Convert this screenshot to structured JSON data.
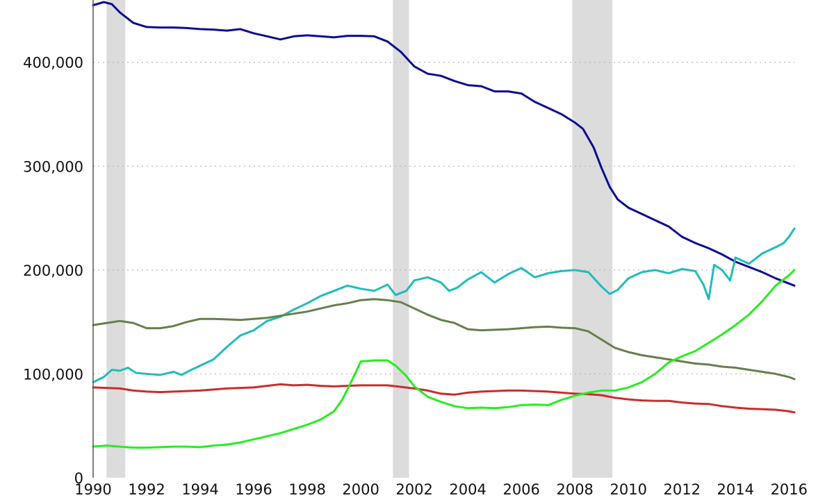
{
  "chart_data": {
    "type": "line",
    "title": "",
    "xlabel": "",
    "ylabel": "",
    "xlim": [
      1990,
      2016.2
    ],
    "ylim": [
      0,
      460000
    ],
    "grid": {
      "x": false,
      "y": true
    },
    "legend": "none",
    "x_ticks": [
      1990,
      1992,
      1994,
      1996,
      1998,
      2000,
      2002,
      2004,
      2006,
      2008,
      2010,
      2012,
      2014,
      2016
    ],
    "x_tick_labels": [
      "1990",
      "1992",
      "1994",
      "1996",
      "1998",
      "2000",
      "2002",
      "2004",
      "2006",
      "2008",
      "2010",
      "2012",
      "2014",
      "2016"
    ],
    "y_ticks": [
      0,
      100000,
      200000,
      300000,
      400000
    ],
    "y_tick_labels": [
      "0",
      "100,000",
      "200,000",
      "300,000",
      "400,000"
    ],
    "recessions": [
      {
        "start": 1990.5,
        "end": 1991.2
      },
      {
        "start": 2001.2,
        "end": 2001.8
      },
      {
        "start": 2007.9,
        "end": 2009.4
      }
    ],
    "series": [
      {
        "color": "#0b0b96",
        "points": [
          [
            1990,
            455000
          ],
          [
            1990.4,
            458000
          ],
          [
            1990.7,
            456000
          ],
          [
            1991,
            448000
          ],
          [
            1991.5,
            438000
          ],
          [
            1992,
            434000
          ],
          [
            1992.5,
            433500
          ],
          [
            1993,
            433500
          ],
          [
            1993.5,
            433000
          ],
          [
            1994,
            432000
          ],
          [
            1994.5,
            431500
          ],
          [
            1995,
            430500
          ],
          [
            1995.5,
            432000
          ],
          [
            1996,
            428000
          ],
          [
            1996.5,
            425000
          ],
          [
            1997,
            422000
          ],
          [
            1997.5,
            425000
          ],
          [
            1998,
            426000
          ],
          [
            1998.5,
            425000
          ],
          [
            1999,
            424000
          ],
          [
            1999.5,
            425500
          ],
          [
            2000,
            425500
          ],
          [
            2000.5,
            425000
          ],
          [
            2001,
            420000
          ],
          [
            2001.5,
            410000
          ],
          [
            2002,
            396000
          ],
          [
            2002.5,
            389000
          ],
          [
            2003,
            387000
          ],
          [
            2003.5,
            382000
          ],
          [
            2004,
            378000
          ],
          [
            2004.5,
            377000
          ],
          [
            2005,
            372000
          ],
          [
            2005.5,
            372000
          ],
          [
            2006,
            370000
          ],
          [
            2006.5,
            362000
          ],
          [
            2007,
            356000
          ],
          [
            2007.5,
            350000
          ],
          [
            2008,
            342000
          ],
          [
            2008.3,
            336000
          ],
          [
            2008.7,
            318000
          ],
          [
            2009,
            298000
          ],
          [
            2009.3,
            280000
          ],
          [
            2009.6,
            268000
          ],
          [
            2010,
            260000
          ],
          [
            2010.5,
            254000
          ],
          [
            2011,
            248000
          ],
          [
            2011.5,
            242000
          ],
          [
            2012,
            232000
          ],
          [
            2012.5,
            226000
          ],
          [
            2013,
            221000
          ],
          [
            2013.5,
            215000
          ],
          [
            2014,
            208000
          ],
          [
            2014.5,
            203000
          ],
          [
            2015,
            198000
          ],
          [
            2015.5,
            192000
          ],
          [
            2016,
            187000
          ],
          [
            2016.2,
            185000
          ]
        ]
      },
      {
        "color": "#1fbcbc",
        "points": [
          [
            1990,
            92000
          ],
          [
            1990.4,
            97000
          ],
          [
            1990.7,
            104000
          ],
          [
            1991,
            103000
          ],
          [
            1991.3,
            106000
          ],
          [
            1991.6,
            101000
          ],
          [
            1992,
            100000
          ],
          [
            1992.5,
            99000
          ],
          [
            1993,
            102000
          ],
          [
            1993.3,
            99000
          ],
          [
            1993.6,
            103000
          ],
          [
            1994,
            108000
          ],
          [
            1994.5,
            114000
          ],
          [
            1995,
            126000
          ],
          [
            1995.5,
            137000
          ],
          [
            1996,
            142000
          ],
          [
            1996.5,
            151000
          ],
          [
            1997,
            155000
          ],
          [
            1997.5,
            162000
          ],
          [
            1998,
            168000
          ],
          [
            1998.5,
            175000
          ],
          [
            1999,
            180000
          ],
          [
            1999.5,
            185000
          ],
          [
            2000,
            182000
          ],
          [
            2000.5,
            180000
          ],
          [
            2001,
            186000
          ],
          [
            2001.3,
            176000
          ],
          [
            2001.7,
            180000
          ],
          [
            2002,
            190000
          ],
          [
            2002.5,
            193000
          ],
          [
            2003,
            188000
          ],
          [
            2003.3,
            180000
          ],
          [
            2003.6,
            183000
          ],
          [
            2004,
            191000
          ],
          [
            2004.5,
            198000
          ],
          [
            2005,
            188000
          ],
          [
            2005.5,
            196000
          ],
          [
            2006,
            202000
          ],
          [
            2006.5,
            193000
          ],
          [
            2007,
            197000
          ],
          [
            2007.5,
            199000
          ],
          [
            2008,
            200000
          ],
          [
            2008.5,
            198000
          ],
          [
            2009,
            184000
          ],
          [
            2009.3,
            177000
          ],
          [
            2009.6,
            181000
          ],
          [
            2010,
            192000
          ],
          [
            2010.5,
            198000
          ],
          [
            2011,
            200000
          ],
          [
            2011.5,
            197000
          ],
          [
            2012,
            201000
          ],
          [
            2012.5,
            199000
          ],
          [
            2012.8,
            186000
          ],
          [
            2013,
            172000
          ],
          [
            2013.2,
            205000
          ],
          [
            2013.5,
            200000
          ],
          [
            2013.8,
            190000
          ],
          [
            2014,
            212000
          ],
          [
            2014.5,
            206000
          ],
          [
            2015,
            216000
          ],
          [
            2015.5,
            222000
          ],
          [
            2015.8,
            226000
          ],
          [
            2016,
            232000
          ],
          [
            2016.2,
            240000
          ]
        ]
      },
      {
        "color": "#647f4c",
        "points": [
          [
            1990,
            147000
          ],
          [
            1990.5,
            149000
          ],
          [
            1991,
            151000
          ],
          [
            1991.5,
            149000
          ],
          [
            1992,
            144000
          ],
          [
            1992.5,
            144000
          ],
          [
            1993,
            146000
          ],
          [
            1993.5,
            150000
          ],
          [
            1994,
            153000
          ],
          [
            1994.5,
            153000
          ],
          [
            1995,
            152500
          ],
          [
            1995.5,
            152000
          ],
          [
            1996,
            153000
          ],
          [
            1996.5,
            154000
          ],
          [
            1997,
            156000
          ],
          [
            1997.5,
            158000
          ],
          [
            1998,
            160000
          ],
          [
            1998.5,
            163000
          ],
          [
            1999,
            166000
          ],
          [
            1999.5,
            168000
          ],
          [
            2000,
            171000
          ],
          [
            2000.5,
            172000
          ],
          [
            2001,
            171000
          ],
          [
            2001.5,
            169000
          ],
          [
            2002,
            163000
          ],
          [
            2002.5,
            157000
          ],
          [
            2003,
            152000
          ],
          [
            2003.5,
            149000
          ],
          [
            2004,
            143000
          ],
          [
            2004.5,
            142000
          ],
          [
            2005,
            142500
          ],
          [
            2005.5,
            143000
          ],
          [
            2006,
            144000
          ],
          [
            2006.5,
            145000
          ],
          [
            2007,
            145500
          ],
          [
            2007.5,
            144500
          ],
          [
            2008,
            144000
          ],
          [
            2008.5,
            141000
          ],
          [
            2009,
            133000
          ],
          [
            2009.5,
            125000
          ],
          [
            2010,
            121000
          ],
          [
            2010.5,
            118000
          ],
          [
            2011,
            116000
          ],
          [
            2011.5,
            114000
          ],
          [
            2012,
            112000
          ],
          [
            2012.5,
            110000
          ],
          [
            2013,
            109000
          ],
          [
            2013.5,
            107000
          ],
          [
            2014,
            106000
          ],
          [
            2014.5,
            104000
          ],
          [
            2015,
            102000
          ],
          [
            2015.5,
            100000
          ],
          [
            2016,
            97000
          ],
          [
            2016.2,
            95000
          ]
        ]
      },
      {
        "color": "#cc2b2b",
        "points": [
          [
            1990,
            87000
          ],
          [
            1990.5,
            86500
          ],
          [
            1991,
            86000
          ],
          [
            1991.5,
            84000
          ],
          [
            1992,
            83000
          ],
          [
            1992.5,
            82500
          ],
          [
            1993,
            83000
          ],
          [
            1993.5,
            83500
          ],
          [
            1994,
            84000
          ],
          [
            1994.5,
            85000
          ],
          [
            1995,
            86000
          ],
          [
            1995.5,
            86500
          ],
          [
            1996,
            87000
          ],
          [
            1996.5,
            88500
          ],
          [
            1997,
            90000
          ],
          [
            1997.5,
            89000
          ],
          [
            1998,
            89500
          ],
          [
            1998.5,
            88500
          ],
          [
            1999,
            88000
          ],
          [
            1999.5,
            88500
          ],
          [
            2000,
            89000
          ],
          [
            2000.5,
            89000
          ],
          [
            2001,
            89000
          ],
          [
            2001.5,
            87500
          ],
          [
            2002,
            86000
          ],
          [
            2002.5,
            84000
          ],
          [
            2003,
            81000
          ],
          [
            2003.5,
            80000
          ],
          [
            2004,
            82000
          ],
          [
            2004.5,
            83000
          ],
          [
            2005,
            83500
          ],
          [
            2005.5,
            84000
          ],
          [
            2006,
            84000
          ],
          [
            2006.5,
            83500
          ],
          [
            2007,
            83000
          ],
          [
            2007.5,
            82000
          ],
          [
            2008,
            81000
          ],
          [
            2008.5,
            80500
          ],
          [
            2009,
            79500
          ],
          [
            2009.5,
            77000
          ],
          [
            2010,
            75500
          ],
          [
            2010.5,
            74500
          ],
          [
            2011,
            74000
          ],
          [
            2011.5,
            74000
          ],
          [
            2012,
            72500
          ],
          [
            2012.5,
            71500
          ],
          [
            2013,
            71000
          ],
          [
            2013.5,
            69000
          ],
          [
            2014,
            67500
          ],
          [
            2014.5,
            66500
          ],
          [
            2015,
            66000
          ],
          [
            2015.5,
            65500
          ],
          [
            2016,
            64000
          ],
          [
            2016.2,
            63000
          ]
        ]
      },
      {
        "color": "#26ee1e",
        "points": [
          [
            1990,
            30000
          ],
          [
            1990.5,
            31000
          ],
          [
            1991,
            30000
          ],
          [
            1991.5,
            29000
          ],
          [
            1992,
            29000
          ],
          [
            1992.5,
            29500
          ],
          [
            1993,
            30000
          ],
          [
            1993.5,
            30000
          ],
          [
            1994,
            29500
          ],
          [
            1994.5,
            31000
          ],
          [
            1995,
            32000
          ],
          [
            1995.5,
            34000
          ],
          [
            1996,
            37000
          ],
          [
            1996.5,
            40000
          ],
          [
            1997,
            43000
          ],
          [
            1997.5,
            47000
          ],
          [
            1998,
            51000
          ],
          [
            1998.5,
            56000
          ],
          [
            1999,
            64000
          ],
          [
            1999.3,
            75000
          ],
          [
            1999.6,
            90000
          ],
          [
            2000,
            112000
          ],
          [
            2000.5,
            113000
          ],
          [
            2001,
            113000
          ],
          [
            2001.3,
            108000
          ],
          [
            2001.7,
            98000
          ],
          [
            2002,
            88000
          ],
          [
            2002.5,
            78000
          ],
          [
            2003,
            73000
          ],
          [
            2003.5,
            69000
          ],
          [
            2004,
            67000
          ],
          [
            2004.5,
            67500
          ],
          [
            2005,
            67000
          ],
          [
            2005.5,
            68000
          ],
          [
            2006,
            70000
          ],
          [
            2006.5,
            70500
          ],
          [
            2007,
            70000
          ],
          [
            2007.5,
            75000
          ],
          [
            2008,
            79000
          ],
          [
            2008.5,
            82000
          ],
          [
            2009,
            84000
          ],
          [
            2009.5,
            84000
          ],
          [
            2010,
            87000
          ],
          [
            2010.5,
            92000
          ],
          [
            2011,
            100000
          ],
          [
            2011.5,
            111000
          ],
          [
            2012,
            117000
          ],
          [
            2012.5,
            122000
          ],
          [
            2013,
            130000
          ],
          [
            2013.5,
            138000
          ],
          [
            2014,
            147000
          ],
          [
            2014.5,
            157000
          ],
          [
            2015,
            170000
          ],
          [
            2015.5,
            185000
          ],
          [
            2016,
            195000
          ],
          [
            2016.2,
            200000
          ]
        ]
      }
    ]
  }
}
